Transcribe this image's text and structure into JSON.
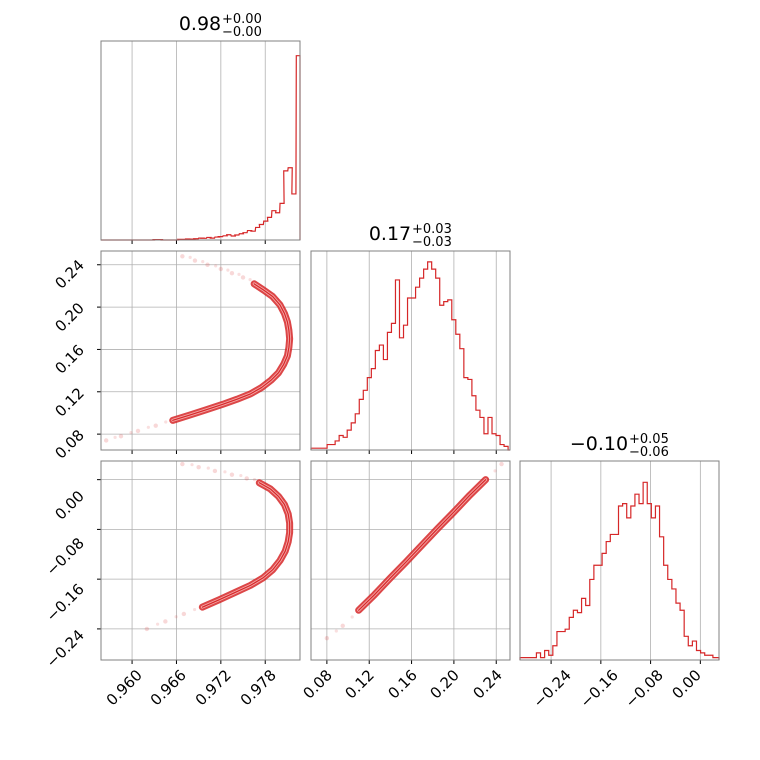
{
  "figure": {
    "type": "corner_plot"
  },
  "colors": {
    "series": "#d62728",
    "grid": "#b0b0b0",
    "axis": "#808080"
  },
  "chart_data": [
    {
      "type": "histogram",
      "panel": "1,1",
      "title": {
        "value": "0.98",
        "upper": "+0.00",
        "lower": "−0.00"
      },
      "xlim": [
        0.9558,
        0.9827
      ],
      "bin_width": 0.00055,
      "x": [
        0.9558,
        0.9563,
        0.9569,
        0.9574,
        0.958,
        0.9585,
        0.9591,
        0.9596,
        0.9602,
        0.9607,
        0.9613,
        0.9618,
        0.9624,
        0.9629,
        0.9635,
        0.964,
        0.9646,
        0.9651,
        0.9657,
        0.9662,
        0.9668,
        0.9673,
        0.9679,
        0.9684,
        0.969,
        0.9695,
        0.9701,
        0.9706,
        0.9712,
        0.9717,
        0.9723,
        0.9728,
        0.9734,
        0.9739,
        0.9745,
        0.975,
        0.9756,
        0.9761,
        0.9767,
        0.9772,
        0.9778,
        0.9783,
        0.9789,
        0.9794,
        0.98,
        0.9805,
        0.9811,
        0.9816,
        0.9822
      ],
      "counts": [
        0,
        0,
        0,
        0,
        0,
        0,
        0,
        0,
        0,
        0,
        0,
        0,
        0,
        0.2,
        0.2,
        0,
        0,
        0,
        0,
        0.3,
        0.3,
        0.5,
        0.4,
        0.6,
        0.9,
        0.8,
        1.2,
        0.9,
        1.4,
        1.6,
        2.0,
        2.5,
        1.9,
        2.4,
        3.0,
        3.5,
        4.5,
        4.2,
        6.0,
        7.4,
        9.0,
        10.8,
        14.0,
        13.0,
        17.5,
        33.0,
        34.5,
        22.0,
        88.0
      ],
      "ylim": [
        0,
        95
      ]
    },
    {
      "type": "histogram",
      "panel": "2,2",
      "title": {
        "value": "0.17",
        "upper": "+0.03",
        "lower": "−0.03"
      },
      "xlim": [
        0.065,
        0.253
      ],
      "bin_width": 0.0038,
      "x": [
        0.065,
        0.0688,
        0.0726,
        0.0764,
        0.0802,
        0.084,
        0.0878,
        0.0916,
        0.0954,
        0.0992,
        0.103,
        0.1068,
        0.1106,
        0.1144,
        0.1182,
        0.122,
        0.1258,
        0.1296,
        0.1334,
        0.1372,
        0.141,
        0.1448,
        0.1486,
        0.1524,
        0.1562,
        0.16,
        0.1638,
        0.1676,
        0.1714,
        0.1752,
        0.179,
        0.1828,
        0.1866,
        0.1904,
        0.1942,
        0.198,
        0.2018,
        0.2056,
        0.2094,
        0.2132,
        0.217,
        0.2208,
        0.2246,
        0.2284,
        0.2322,
        0.236,
        0.2398,
        0.2436,
        0.2474,
        0.2512
      ],
      "counts": [
        1,
        1,
        1,
        1,
        3,
        3,
        5,
        8,
        7,
        11,
        15,
        20,
        28,
        33,
        40,
        45,
        55,
        58,
        50,
        65,
        70,
        94,
        62,
        69,
        84,
        84,
        90,
        95,
        100,
        104,
        100,
        95,
        80,
        82,
        83,
        72,
        64,
        56,
        40,
        39,
        30,
        22,
        18,
        9,
        18,
        9,
        8,
        3,
        2,
        0
      ],
      "ylim": [
        0,
        110
      ]
    },
    {
      "type": "histogram",
      "panel": "3,3",
      "title": {
        "value": "−0.10",
        "upper": "+0.05",
        "lower": "−0.06"
      },
      "xlim": [
        -0.29,
        0.03
      ],
      "bin_width": 0.0066,
      "x": [
        -0.29,
        -0.2834,
        -0.2768,
        -0.2702,
        -0.2636,
        -0.257,
        -0.2504,
        -0.2438,
        -0.2372,
        -0.2306,
        -0.224,
        -0.2174,
        -0.2108,
        -0.2042,
        -0.1976,
        -0.191,
        -0.1844,
        -0.1778,
        -0.1712,
        -0.1646,
        -0.158,
        -0.1514,
        -0.1448,
        -0.1382,
        -0.1316,
        -0.125,
        -0.1184,
        -0.1118,
        -0.1052,
        -0.0986,
        -0.092,
        -0.0854,
        -0.0788,
        -0.0722,
        -0.0656,
        -0.059,
        -0.0524,
        -0.0458,
        -0.0392,
        -0.0326,
        -0.026,
        -0.0194,
        -0.0128,
        -0.0062,
        0.0004,
        0.007,
        0.0136,
        0.0202,
        0.0268
      ],
      "counts": [
        0.5,
        0.5,
        0.5,
        0.5,
        1.5,
        0.5,
        2.0,
        1.0,
        3.0,
        6.0,
        6.0,
        6.5,
        9.0,
        10.5,
        10.0,
        13.0,
        11.5,
        17.0,
        20.0,
        20.0,
        22.5,
        25.0,
        26.5,
        26.5,
        32.5,
        33.0,
        30.0,
        32.5,
        35.0,
        33.0,
        37.5,
        33.0,
        30.0,
        32.5,
        26.0,
        20.0,
        17.0,
        15.0,
        12.0,
        10.5,
        5.0,
        3.0,
        4.0,
        2.0,
        1.5,
        1.0,
        1.0,
        0.5,
        0.5
      ],
      "ylim": [
        0,
        42
      ]
    },
    {
      "type": "scatter",
      "panel": "2,1",
      "xlim": [
        0.9558,
        0.9827
      ],
      "ylim": [
        0.065,
        0.253
      ],
      "points": [
        [
          0.9668,
          0.248
        ],
        [
          0.9685,
          0.244
        ],
        [
          0.9702,
          0.24
        ],
        [
          0.972,
          0.236
        ],
        [
          0.9735,
          0.232
        ],
        [
          0.975,
          0.228
        ],
        [
          0.9765,
          0.222
        ],
        [
          0.9778,
          0.216
        ],
        [
          0.979,
          0.21
        ],
        [
          0.98,
          0.202
        ],
        [
          0.9806,
          0.194
        ],
        [
          0.981,
          0.186
        ],
        [
          0.9812,
          0.178
        ],
        [
          0.9813,
          0.17
        ],
        [
          0.9812,
          0.162
        ],
        [
          0.981,
          0.154
        ],
        [
          0.9805,
          0.146
        ],
        [
          0.9798,
          0.138
        ],
        [
          0.9788,
          0.131
        ],
        [
          0.9775,
          0.124
        ],
        [
          0.976,
          0.118
        ],
        [
          0.9742,
          0.113
        ],
        [
          0.9722,
          0.108
        ],
        [
          0.97,
          0.103
        ],
        [
          0.9678,
          0.098
        ],
        [
          0.9655,
          0.093
        ],
        [
          0.9632,
          0.088
        ],
        [
          0.9608,
          0.083
        ],
        [
          0.9585,
          0.078
        ],
        [
          0.9565,
          0.074
        ]
      ]
    },
    {
      "type": "scatter",
      "panel": "3,1",
      "xlim": [
        0.9558,
        0.9827
      ],
      "ylim": [
        -0.29,
        0.03
      ],
      "points": [
        [
          0.9668,
          0.025
        ],
        [
          0.969,
          0.02
        ],
        [
          0.9712,
          0.014
        ],
        [
          0.9735,
          0.008
        ],
        [
          0.9755,
          0.002
        ],
        [
          0.9772,
          -0.005
        ],
        [
          0.9787,
          -0.015
        ],
        [
          0.9798,
          -0.027
        ],
        [
          0.9806,
          -0.04
        ],
        [
          0.9811,
          -0.055
        ],
        [
          0.9813,
          -0.07
        ],
        [
          0.9813,
          -0.085
        ],
        [
          0.9811,
          -0.1
        ],
        [
          0.9807,
          -0.115
        ],
        [
          0.98,
          -0.13
        ],
        [
          0.979,
          -0.145
        ],
        [
          0.9777,
          -0.158
        ],
        [
          0.976,
          -0.17
        ],
        [
          0.974,
          -0.181
        ],
        [
          0.9718,
          -0.193
        ],
        [
          0.9695,
          -0.205
        ],
        [
          0.967,
          -0.216
        ],
        [
          0.9645,
          -0.228
        ],
        [
          0.962,
          -0.24
        ]
      ]
    },
    {
      "type": "scatter",
      "panel": "3,2",
      "xlim": [
        0.065,
        0.253
      ],
      "ylim": [
        -0.29,
        0.03
      ],
      "points": [
        [
          0.08,
          -0.255
        ],
        [
          0.095,
          -0.235
        ],
        [
          0.11,
          -0.21
        ],
        [
          0.125,
          -0.185
        ],
        [
          0.14,
          -0.158
        ],
        [
          0.155,
          -0.132
        ],
        [
          0.17,
          -0.105
        ],
        [
          0.185,
          -0.078
        ],
        [
          0.2,
          -0.052
        ],
        [
          0.215,
          -0.025
        ],
        [
          0.23,
          0.0
        ],
        [
          0.245,
          0.025
        ]
      ]
    }
  ],
  "axes": {
    "x0_ticks": [
      "0.960",
      "0.966",
      "0.972",
      "0.978"
    ],
    "x1_ticks": [
      "0.08",
      "0.12",
      "0.16",
      "0.20",
      "0.24"
    ],
    "x2_ticks": [
      "−0.24",
      "−0.16",
      "−0.08",
      "0.00"
    ],
    "y1_ticks": [
      "0.24",
      "0.20",
      "0.16",
      "0.12",
      "0.08"
    ],
    "y2_ticks": [
      "0.00",
      "−0.08",
      "−0.16",
      "−0.24"
    ]
  }
}
